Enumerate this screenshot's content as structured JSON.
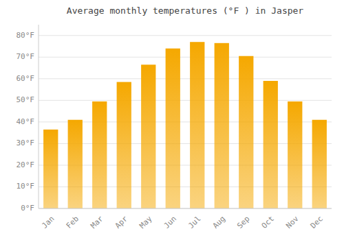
{
  "chart_data": {
    "type": "bar",
    "title": "Average monthly temperatures (°F ) in Jasper",
    "categories": [
      "Jan",
      "Feb",
      "Mar",
      "Apr",
      "May",
      "Jun",
      "Jul",
      "Aug",
      "Sep",
      "Oct",
      "Nov",
      "Dec"
    ],
    "values": [
      36.5,
      41.0,
      49.5,
      58.5,
      66.5,
      74.0,
      77.0,
      76.5,
      70.5,
      59.0,
      49.5,
      41.0
    ],
    "color": "#F5A800",
    "ylim": [
      0,
      85
    ],
    "yticks": [
      {
        "value": 0,
        "label": "0°F"
      },
      {
        "value": 10,
        "label": "10°F"
      },
      {
        "value": 20,
        "label": "20°F"
      },
      {
        "value": 30,
        "label": "30°F"
      },
      {
        "value": 40,
        "label": "40°F"
      },
      {
        "value": 50,
        "label": "50°F"
      },
      {
        "value": 60,
        "label": "60°F"
      },
      {
        "value": 70,
        "label": "70°F"
      },
      {
        "value": 80,
        "label": "80°F"
      }
    ],
    "grid": true
  }
}
